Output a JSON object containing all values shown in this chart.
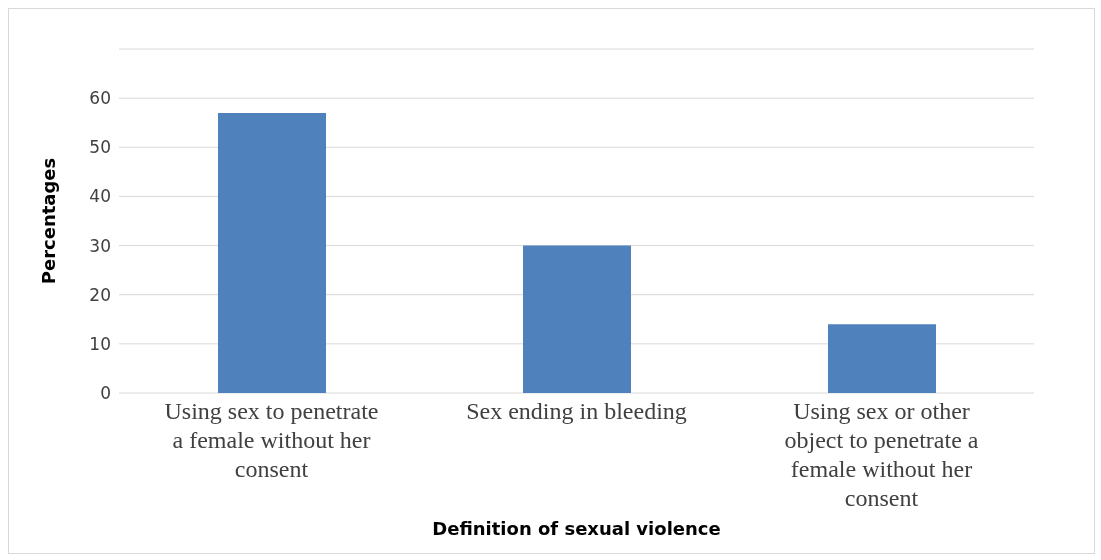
{
  "chart_data": {
    "type": "bar",
    "xlabel": "Definition of sexual violence",
    "ylabel": "Percentages",
    "categories": [
      "Using sex to penetrate a female without her consent",
      "Sex ending in bleeding",
      "Using sex or other object to penetrate a female without her consent"
    ],
    "values": [
      57,
      30,
      14
    ],
    "color": "#4f81bd",
    "ylim": [
      0,
      70
    ],
    "yticks": [
      0,
      10,
      20,
      30,
      40,
      50,
      60,
      {
        "value": 70,
        "label": null
      }
    ],
    "grid": "y"
  }
}
